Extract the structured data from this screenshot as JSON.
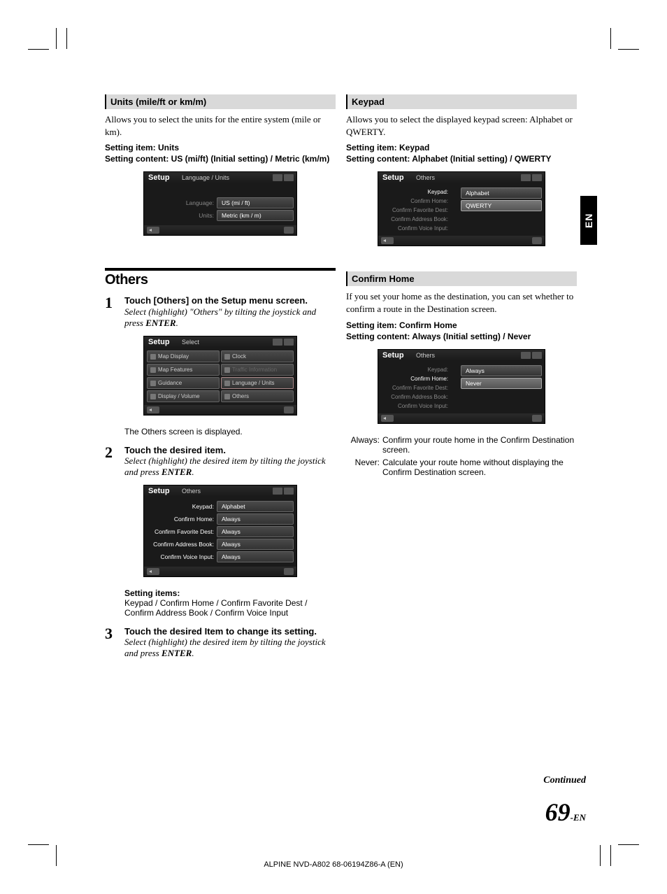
{
  "crop": {
    "size": 30,
    "gap": 10
  },
  "lang_tab": "EN",
  "left": {
    "units": {
      "header": "Units (mile/ft or km/m)",
      "desc": "Allows you to select the units for the entire system (mile or km).",
      "setting_item": "Setting item: Units",
      "setting_content": "Setting content: US (mi/ft) (Initial setting) / Metric (km/m)",
      "mock": {
        "title": "Setup",
        "subtitle": "Language / Units",
        "rows": [
          {
            "label": "Language:",
            "value": "US (mi / ft)"
          },
          {
            "label": "Units:",
            "value": "Metric (km / m)"
          }
        ]
      }
    },
    "others": {
      "header": "Others",
      "steps": [
        {
          "num": "1",
          "title_pre": "Touch ",
          "title_bracket": "[Others]",
          "title_post": " on the Setup menu screen.",
          "desc": "Select (highlight) \"Others\" by tilting the joystick and press ",
          "enter": "ENTER",
          "desc_post": ".",
          "mock": {
            "title": "Setup",
            "subtitle": "Select",
            "tiles": [
              {
                "label": "Map Display"
              },
              {
                "label": "Clock"
              },
              {
                "label": "Map Features"
              },
              {
                "label": "Traffic Information",
                "disabled": true
              },
              {
                "label": "Guidance"
              },
              {
                "label": "Language / Units",
                "highlighted": true
              },
              {
                "label": "Display / Volume"
              },
              {
                "label": "Others"
              }
            ]
          },
          "note_pre": "The ",
          "note_bold": "Others",
          "note_post": " screen is displayed."
        },
        {
          "num": "2",
          "title": "Touch the desired item.",
          "desc": "Select (highlight) the desired item by tilting the joystick and press ",
          "enter": "ENTER",
          "desc_post": ".",
          "mock": {
            "title": "Setup",
            "subtitle": "Others",
            "rows": [
              {
                "label": "Keypad:",
                "value": "Alphabet",
                "active": true
              },
              {
                "label": "Confirm Home:",
                "value": "Always",
                "active": true
              },
              {
                "label": "Confirm Favorite Dest:",
                "value": "Always",
                "active": true
              },
              {
                "label": "Confirm Address Book:",
                "value": "Always",
                "active": true
              },
              {
                "label": "Confirm Voice Input:",
                "value": "Always",
                "active": true
              }
            ]
          },
          "items_label": "Setting items:",
          "items_text": "Keypad / Confirm Home / Confirm Favorite Dest / Confirm Address Book / Confirm Voice Input"
        },
        {
          "num": "3",
          "title": "Touch the desired Item to change its setting.",
          "desc": "Select (highlight) the desired item by tilting the joystick and press ",
          "enter": "ENTER",
          "desc_post": "."
        }
      ]
    }
  },
  "right": {
    "keypad": {
      "header": "Keypad",
      "desc": "Allows you to select the displayed keypad screen: Alphabet or QWERTY.",
      "setting_item": "Setting item: Keypad",
      "setting_content": "Setting content: Alphabet (Initial setting) / QWERTY",
      "mock": {
        "title": "Setup",
        "subtitle": "Others",
        "labels": [
          {
            "label": "Keypad:",
            "active": true
          },
          {
            "label": "Confirm Home:"
          },
          {
            "label": "Confirm Favorite Dest:"
          },
          {
            "label": "Confirm Address Book:"
          },
          {
            "label": "Confirm Voice Input:"
          }
        ],
        "options": [
          {
            "label": "Alphabet"
          },
          {
            "label": "QWERTY",
            "selected": true
          }
        ]
      }
    },
    "confirm_home": {
      "header": "Confirm Home",
      "desc": "If you set your home as the destination, you can set whether to confirm a route in the Destination screen.",
      "setting_item": "Setting item: Confirm Home",
      "setting_content": "Setting content: Always (Initial setting) / Never",
      "mock": {
        "title": "Setup",
        "subtitle": "Others",
        "labels": [
          {
            "label": "Keypad:"
          },
          {
            "label": "Confirm Home:",
            "active": true
          },
          {
            "label": "Confirm Favorite Dest:"
          },
          {
            "label": "Confirm Address Book:"
          },
          {
            "label": "Confirm Voice Input:"
          }
        ],
        "options": [
          {
            "label": "Always"
          },
          {
            "label": "Never",
            "selected": true
          }
        ]
      },
      "defs": [
        {
          "term": "Always:",
          "body": "Confirm your route home in the Confirm Destination screen."
        },
        {
          "term": "Never:",
          "body": "Calculate your route home without displaying the Confirm Destination screen."
        }
      ]
    }
  },
  "continued": "Continued",
  "page_num": "69",
  "page_suffix": "-EN",
  "footer": "ALPINE NVD-A802 68-06194Z86-A (EN)"
}
